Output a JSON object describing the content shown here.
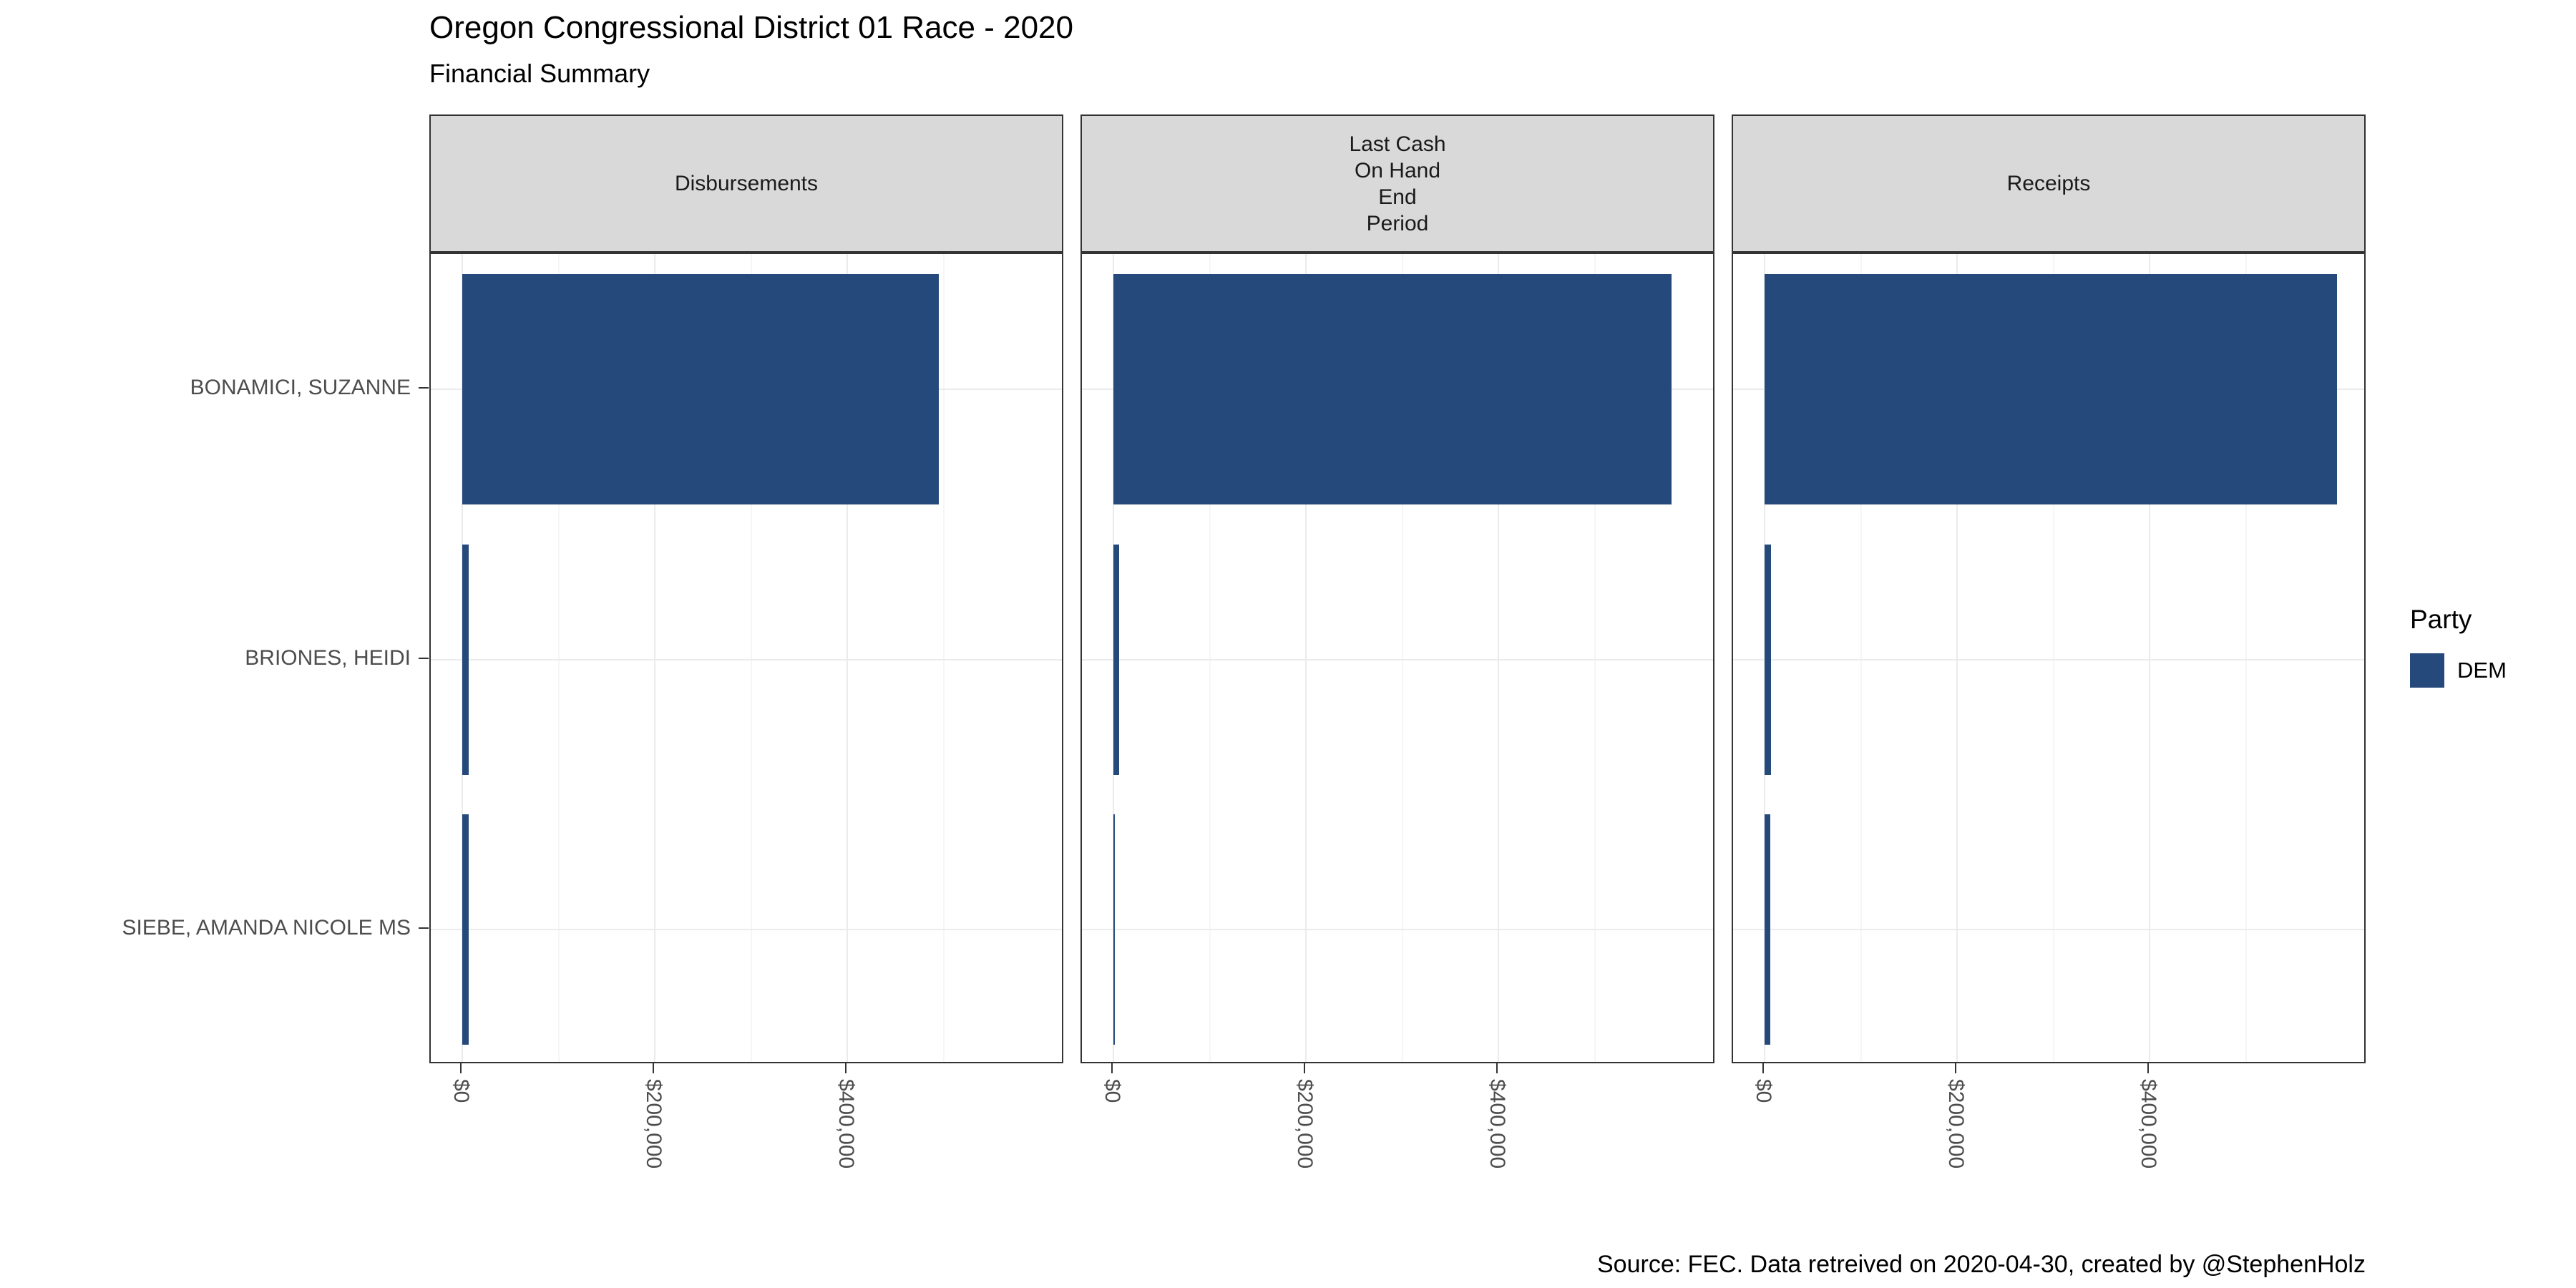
{
  "chart_data": {
    "type": "bar",
    "orientation": "horizontal",
    "title": "Oregon Congressional District 01 Race - 2020",
    "subtitle": "Financial Summary",
    "caption": "Source: FEC. Data retreived on 2020-04-30, created by @StephenHolz",
    "categories": [
      "BONAMICI, SUZANNE",
      "BRIONES, HEIDI",
      "SIEBE, AMANDA NICOLE MS"
    ],
    "category_party": [
      "DEM",
      "DEM",
      "DEM"
    ],
    "facets": [
      {
        "label_lines": [
          "Disbursements"
        ],
        "values": [
          495000,
          7000,
          7000
        ]
      },
      {
        "label_lines": [
          "Last Cash",
          "On Hand",
          "End",
          "Period"
        ],
        "values": [
          580000,
          6000,
          500
        ]
      },
      {
        "label_lines": [
          "Receipts"
        ],
        "values": [
          595000,
          7000,
          6000
        ]
      }
    ],
    "x_ticks": [
      {
        "value": 0,
        "label": "$0"
      },
      {
        "value": 200000,
        "label": "$200,000"
      },
      {
        "value": 400000,
        "label": "$400,000"
      }
    ],
    "x_minor_ticks": [
      100000,
      300000,
      500000
    ],
    "xlim": [
      0,
      626000
    ],
    "grid": true,
    "legend": {
      "title": "Party",
      "position": "right",
      "entries": [
        {
          "label": "DEM",
          "color": "#26497B"
        }
      ]
    }
  }
}
